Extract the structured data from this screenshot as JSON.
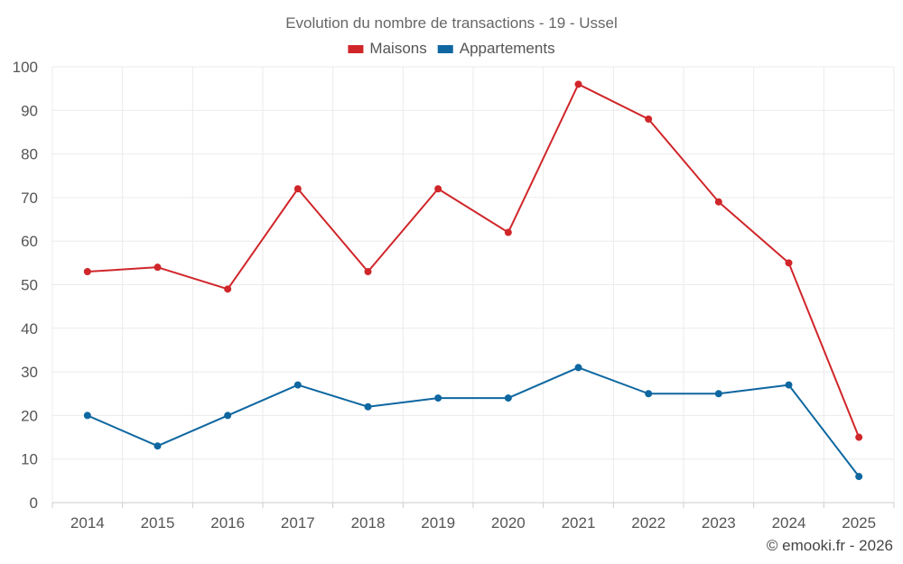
{
  "chart_data": {
    "type": "line",
    "title": "Evolution du nombre de transactions - 19 - Ussel",
    "categories": [
      "2014",
      "2015",
      "2016",
      "2017",
      "2018",
      "2019",
      "2020",
      "2021",
      "2022",
      "2023",
      "2024",
      "2025"
    ],
    "series": [
      {
        "name": "Maisons",
        "color": "#d0262a",
        "values": [
          53,
          54,
          49,
          72,
          53,
          72,
          62,
          96,
          88,
          69,
          55,
          15
        ]
      },
      {
        "name": "Appartements",
        "color": "#0e67a0",
        "values": [
          20,
          13,
          20,
          27,
          22,
          24,
          24,
          31,
          25,
          25,
          27,
          6
        ]
      }
    ],
    "ylim": [
      0,
      100
    ],
    "yticks": [
      0,
      10,
      20,
      30,
      40,
      50,
      60,
      70,
      80,
      90,
      100
    ],
    "grid": true,
    "legend_position": "top-center",
    "xlabel": "",
    "ylabel": ""
  },
  "credit": "© emooki.fr - 2026"
}
